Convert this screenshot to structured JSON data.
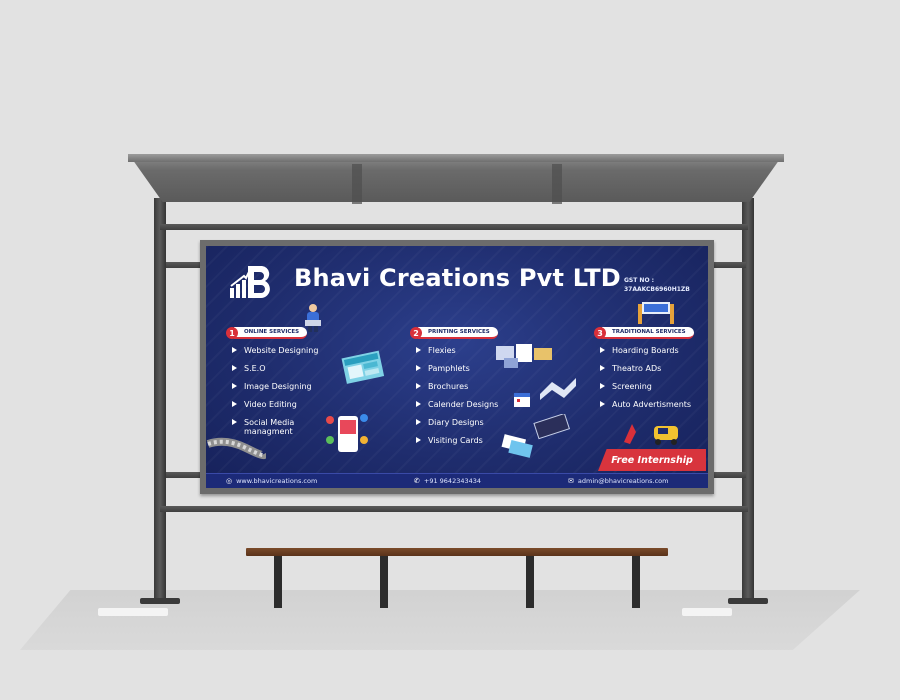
{
  "billboard": {
    "title": "Bhavi Creations Pvt LTD",
    "gst_label": "GST NO :",
    "gst_number": "37AAKCB6960H1ZB",
    "columns": [
      {
        "number": "1",
        "heading": "ONLINE SERVICES",
        "items": [
          "Website Designing",
          "S.E.O",
          "Image Designing",
          "Video Editing",
          "Social Media managment"
        ]
      },
      {
        "number": "2",
        "heading": "PRINTING SERVICES",
        "items": [
          "Flexies",
          "Pamphlets",
          "Brochures",
          "Calender Designs",
          "Diary Designs",
          "Visiting Cards"
        ]
      },
      {
        "number": "3",
        "heading": "TRADITIONAL SERVICES",
        "items": [
          "Hoarding Boards",
          "Theatro ADs",
          "Screening",
          "Auto Advertisments"
        ]
      }
    ],
    "badge": "Free Internship",
    "footer": {
      "website": "www.bhavicreations.com",
      "phone": "+91 9642343434",
      "email": "admin@bhavicreations.com"
    }
  },
  "icons": {
    "website": "globe-icon",
    "phone": "phone-icon",
    "email": "mail-icon"
  },
  "colors": {
    "board_bg": "#1f2d6e",
    "accent_red": "#d9303a",
    "bench_wood": "#6a3d22"
  }
}
